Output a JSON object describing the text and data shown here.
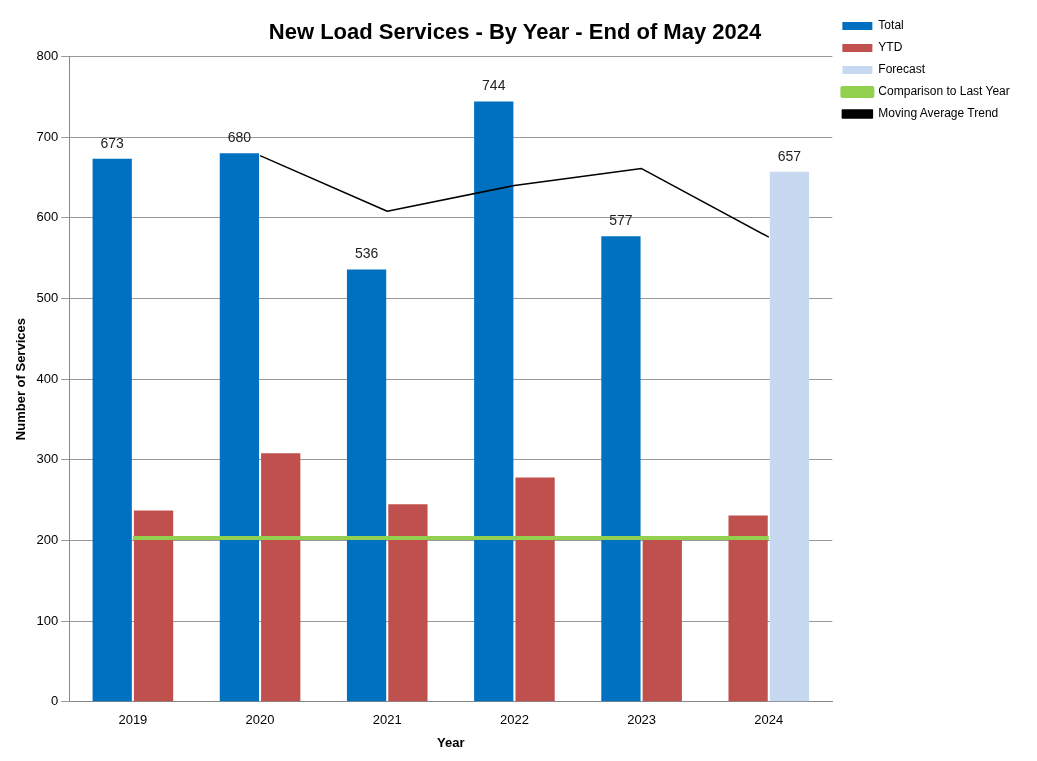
{
  "chart_data": {
    "type": "bar",
    "title": "New Load Services - By Year - End of May 2024",
    "xlabel": "Year",
    "ylabel": "Number of Services",
    "categories": [
      "2019",
      "2020",
      "2021",
      "2022",
      "2023",
      "2024"
    ],
    "series": [
      {
        "name": "Total",
        "color": "#0070c0",
        "values": [
          673,
          680,
          536,
          744,
          577,
          null
        ],
        "value_labels": [
          "673",
          "680",
          "536",
          "744",
          "577",
          null
        ]
      },
      {
        "name": "YTD",
        "color": "#c0504d",
        "values": [
          237,
          308,
          245,
          278,
          203,
          231
        ]
      },
      {
        "name": "Forecast",
        "color": "#c6d9f0",
        "values": [
          null,
          null,
          null,
          null,
          null,
          657
        ],
        "value_labels": [
          null,
          null,
          null,
          null,
          null,
          "657"
        ]
      },
      {
        "name": "Comparison to Last Year",
        "type": "line",
        "color": "#92d050",
        "values": [
          203,
          203,
          203,
          203,
          203,
          203
        ]
      },
      {
        "name": "Moving Average Trend",
        "type": "line",
        "color": "#000000",
        "values": [
          null,
          677,
          608,
          640,
          661,
          576
        ]
      }
    ],
    "ylim": [
      0,
      800
    ],
    "yticks": [
      0,
      100,
      200,
      300,
      400,
      500,
      600,
      700,
      800
    ],
    "grid": "y",
    "legend": "top right",
    "marker": "none"
  }
}
